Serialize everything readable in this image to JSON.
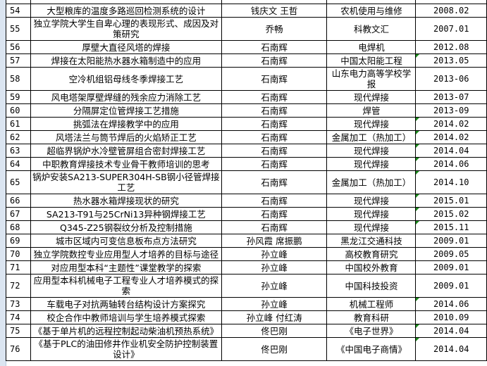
{
  "rows": [
    {
      "num": "54",
      "title": "大型粮库的温度多路巡回检测系统的设计",
      "author": "钱庆文 王哲",
      "journal": "农机使用与维修",
      "date": "2008.02",
      "flag": false
    },
    {
      "num": "55",
      "title": "独立学院大学生自卑心理的表现形式、成因及对策研究",
      "author": "乔畅",
      "journal": "科教文汇",
      "date": "2007.01",
      "flag": false
    },
    {
      "num": "56",
      "title": "厚壁大直径风塔的焊接",
      "author": "石南辉",
      "journal": "电焊机",
      "date": "2012.08",
      "flag": false
    },
    {
      "num": "57",
      "title": "焊接在太阳能热水器水箱制造中的应用",
      "author": "石南辉",
      "journal": "中国太阳能工程",
      "date": "2013.05",
      "flag": true
    },
    {
      "num": "58",
      "title": "空冷机组铝母线冬季焊接工艺",
      "author": "石南辉",
      "journal": "山东电力高等学校学报",
      "date": "2013-06",
      "flag": false
    },
    {
      "num": "59",
      "title": "风电塔架厚壁焊缝的残余应力消除工艺",
      "author": "石南辉",
      "journal": "现代焊接",
      "date": "2013-07",
      "flag": false
    },
    {
      "num": "60",
      "title": "分隔屏定位管焊接工艺措施",
      "author": "石南辉",
      "journal": "焊管",
      "date": "2013-09",
      "flag": false
    },
    {
      "num": "61",
      "title": "挑弧法在焊接教学中的应用",
      "author": "石南辉",
      "journal": "现代焊接",
      "date": "2014.02",
      "flag": true
    },
    {
      "num": "62",
      "title": "风塔法兰与筒节焊后的火焰矫正工艺",
      "author": "石南辉",
      "journal": "金属加工（热加工）",
      "date": "2014.02",
      "flag": true
    },
    {
      "num": "63",
      "title": "超临界锅炉水冷壁管屏组合密封焊接工艺",
      "author": "石南辉",
      "journal": "现代焊接",
      "date": "2014.04",
      "flag": true
    },
    {
      "num": "64",
      "title": "中职教育焊接技术专业骨干教师培训的思考",
      "author": "石南辉",
      "journal": "现代焊接",
      "date": "2014.06",
      "flag": true
    },
    {
      "num": "65",
      "title": "锅炉安装SA213-SUPER304H-SB钢小径管焊接工艺",
      "author": "石南辉",
      "journal": "金属加工（热加工）",
      "date": "2014.10",
      "flag": true
    },
    {
      "num": "66",
      "title": "热水器水箱焊接现状的研究",
      "author": "石南辉",
      "journal": "现代焊接",
      "date": "2015.01",
      "flag": true
    },
    {
      "num": "67",
      "title": "SA213-T91与25CrNi13异种钢焊接工艺",
      "author": "石南辉",
      "journal": "现代焊接",
      "date": "2015.02",
      "flag": true
    },
    {
      "num": "68",
      "title": "Q345-Z25钢裂纹分析及控制措施",
      "author": "石南辉",
      "journal": "现代焊接",
      "date": "2015.11",
      "flag": true
    },
    {
      "num": "69",
      "title": "城市区域内可变信息板布点方法研究",
      "author": "孙风霞 席振鹏",
      "journal": "黑龙江交通科技",
      "date": "2009.01",
      "flag": false
    },
    {
      "num": "70",
      "title": "独立学院数控专业应用型人才培养的目标与途径",
      "author": "孙立峰",
      "journal": "高校教育研究",
      "date": "2009.05",
      "flag": false
    },
    {
      "num": "71",
      "title": "对应用型本科“主题性”课堂教学的探索",
      "author": "孙立峰",
      "journal": "中国校外教育",
      "date": "2009.01",
      "flag": false
    },
    {
      "num": "72",
      "title": "应用型本科机械电子工程专业人才培养模式的探索",
      "author": "孙立峰",
      "journal": "中国科技投资",
      "date": "2009.01",
      "flag": false
    },
    {
      "num": "73",
      "title": "车载电子对抗两轴转台结构设计方案探究",
      "author": "孙立峰",
      "journal": "机械工程师",
      "date": "2014.06",
      "flag": true
    },
    {
      "num": "74",
      "title": "校企合作中教师培训与学生培养模式探索",
      "author": "孙立峰 付红涛",
      "journal": "教育科研",
      "date": "2010.09",
      "flag": false
    },
    {
      "num": "75",
      "title": "《基于单片机的远程控制起动柴油机预热系统》",
      "author": "佟巴刚",
      "journal": "《电子世界》",
      "date": "2014.04",
      "flag": true
    },
    {
      "num": "76",
      "title": "《基于PLC的油田修井作业机安全防护控制装置设计》",
      "author": "佟巴刚",
      "journal": "《中国电子商情》",
      "date": "2014.04",
      "flag": true
    }
  ],
  "colors": {
    "grid": "#000000",
    "flag": "#1a8a1a",
    "row_header_strip": "#dbe5f1"
  }
}
